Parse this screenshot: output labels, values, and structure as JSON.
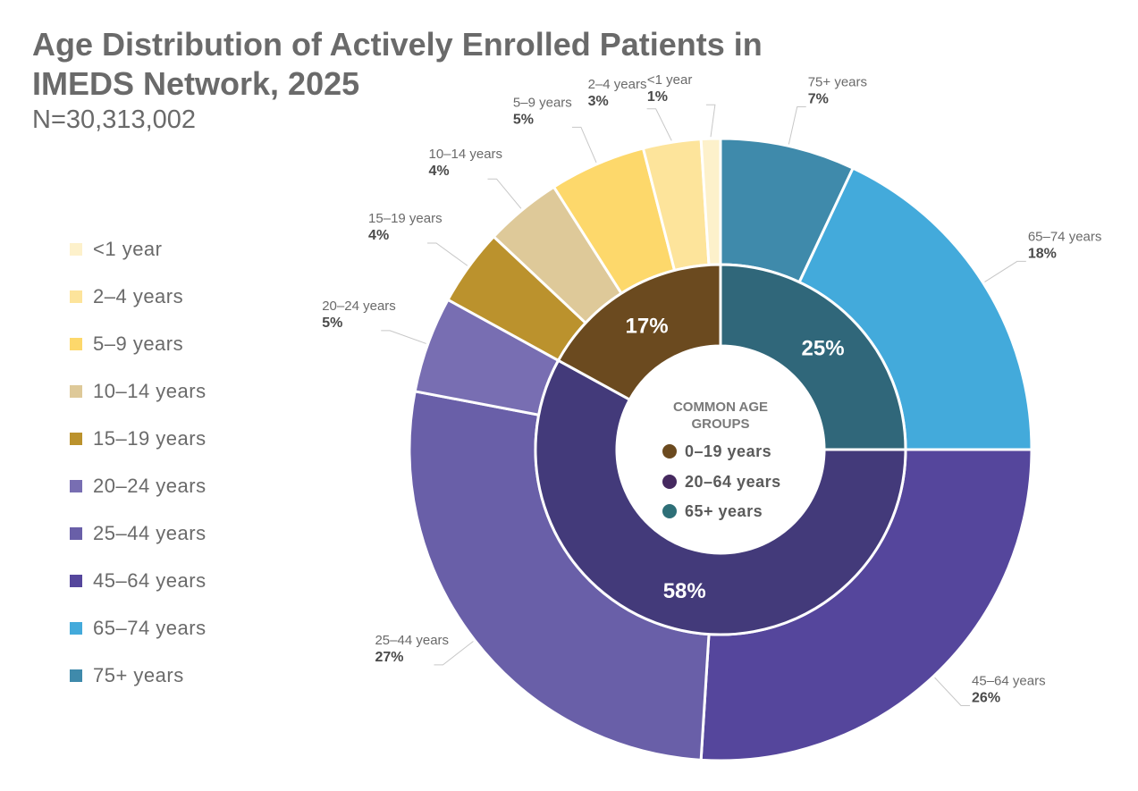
{
  "title": "Age Distribution of Actively Enrolled Patients in IMEDS Network, 2025",
  "subtitle": "N=30,313,002",
  "center": {
    "title_line1": "COMMON AGE",
    "title_line2": "GROUPS",
    "items": [
      {
        "label": "0–19 years",
        "color": "#6b4a1f"
      },
      {
        "label": "20–64 years",
        "color": "#45295f"
      },
      {
        "label": "65+ years",
        "color": "#2e6f77"
      }
    ]
  },
  "chart_data": {
    "type": "pie",
    "title": "Age Distribution of Actively Enrolled Patients in IMEDS Network, 2025",
    "outer_ring": [
      {
        "label": "75+ years",
        "value": 7,
        "display": "7%",
        "color": "#3f8aab"
      },
      {
        "label": "65–74 years",
        "value": 18,
        "display": "18%",
        "color": "#43aadb"
      },
      {
        "label": "45–64 years",
        "value": 26,
        "display": "26%",
        "color": "#55469c"
      },
      {
        "label": "25–44 years",
        "value": 27,
        "display": "27%",
        "color": "#695fa8"
      },
      {
        "label": "20–24 years",
        "value": 5,
        "display": "5%",
        "color": "#786eb2"
      },
      {
        "label": "15–19 years",
        "value": 4,
        "display": "4%",
        "color": "#bb922d"
      },
      {
        "label": "10–14 years",
        "value": 4,
        "display": "4%",
        "color": "#dec999"
      },
      {
        "label": "5–9 years",
        "value": 5,
        "display": "5%",
        "color": "#fdd86b"
      },
      {
        "label": "2–4 years",
        "value": 3,
        "display": "3%",
        "color": "#fde49b"
      },
      {
        "label": "<1 year",
        "value": 1,
        "display": "1%",
        "color": "#fdf1cb"
      }
    ],
    "inner_ring": [
      {
        "label": "65+ years",
        "value": 25,
        "display": "25%",
        "color": "#30677a"
      },
      {
        "label": "20–64 years",
        "value": 58,
        "display": "58%",
        "color": "#433a7a"
      },
      {
        "label": "0–19 years",
        "value": 17,
        "display": "17%",
        "color": "#6b4a1f"
      }
    ],
    "legend": [
      {
        "label": "<1 year",
        "color": "#fdf1cb"
      },
      {
        "label": "2–4 years",
        "color": "#fde49b"
      },
      {
        "label": "5–9 years",
        "color": "#fdd86b"
      },
      {
        "label": "10–14 years",
        "color": "#dec999"
      },
      {
        "label": "15–19 years",
        "color": "#bb922d"
      },
      {
        "label": "20–24 years",
        "color": "#786eb2"
      },
      {
        "label": "25–44 years",
        "color": "#695fa8"
      },
      {
        "label": "45–64 years",
        "color": "#55469c"
      },
      {
        "label": "65–74 years",
        "color": "#43aadb"
      },
      {
        "label": "75+ years",
        "color": "#3f8aab"
      }
    ],
    "legend_position": "left"
  }
}
